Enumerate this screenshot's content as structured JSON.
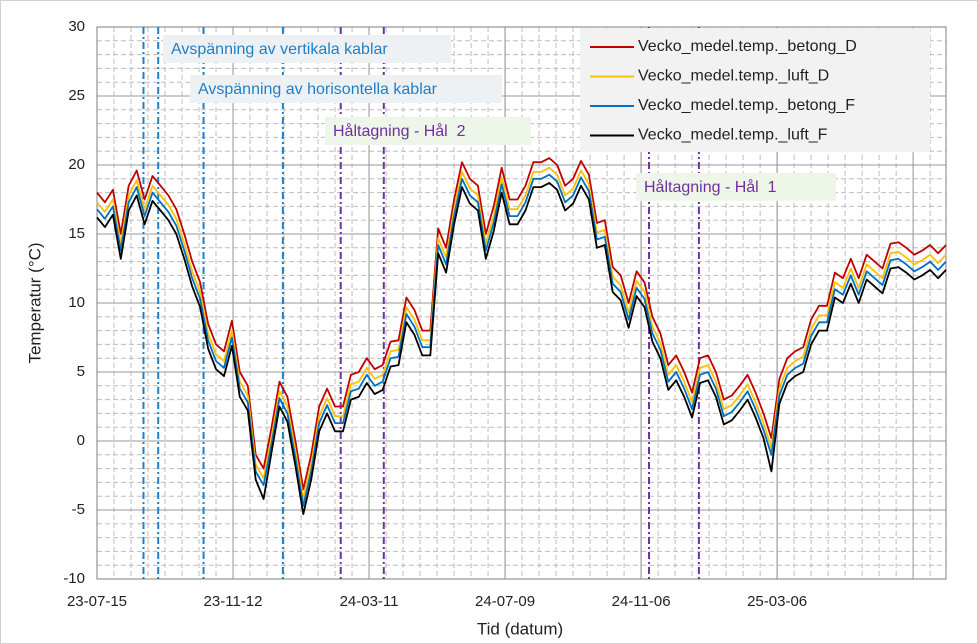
{
  "chart_data": {
    "type": "line",
    "xlabel": "Tid (datum)",
    "ylabel": "Temperatur (°C)",
    "x": [
      "23-07-15",
      "23-07-22",
      "23-07-29",
      "23-08-05",
      "23-08-12",
      "23-08-19",
      "23-08-26",
      "23-09-02",
      "23-09-09",
      "23-09-16",
      "23-09-23",
      "23-09-30",
      "23-10-07",
      "23-10-14",
      "23-10-21",
      "23-10-28",
      "23-11-04",
      "23-11-11",
      "23-11-18",
      "23-11-25",
      "23-12-02",
      "23-12-09",
      "23-12-16",
      "23-12-23",
      "23-12-30",
      "24-01-06",
      "24-01-13",
      "24-01-20",
      "24-01-27",
      "24-02-03",
      "24-02-10",
      "24-02-17",
      "24-02-24",
      "24-03-02",
      "24-03-09",
      "24-03-16",
      "24-03-23",
      "24-03-30",
      "24-04-06",
      "24-04-13",
      "24-04-20",
      "24-04-27",
      "24-05-04",
      "24-05-11",
      "24-05-18",
      "24-05-25",
      "24-06-01",
      "24-06-08",
      "24-06-15",
      "24-06-22",
      "24-06-29",
      "24-07-06",
      "24-07-13",
      "24-07-20",
      "24-07-27",
      "24-08-03",
      "24-08-10",
      "24-08-17",
      "24-08-24",
      "24-08-31",
      "24-09-07",
      "24-09-14",
      "24-09-21",
      "24-09-28",
      "24-10-05",
      "24-10-12",
      "24-10-19",
      "24-10-26",
      "24-11-02",
      "24-11-09",
      "24-11-16",
      "24-11-23",
      "24-11-30",
      "24-12-07",
      "24-12-14",
      "24-12-21",
      "24-12-28",
      "25-01-04",
      "25-01-11",
      "25-01-18",
      "25-01-25",
      "25-02-01",
      "25-02-08",
      "25-02-15",
      "25-02-22",
      "25-03-01",
      "25-03-08",
      "25-03-15",
      "25-03-22",
      "25-03-29",
      "25-04-05",
      "25-04-12",
      "25-04-19",
      "25-04-26",
      "25-05-03",
      "25-05-10",
      "25-05-17",
      "25-05-24",
      "25-05-31",
      "25-06-07",
      "25-06-14",
      "25-06-21",
      "25-06-28",
      "25-07-05",
      "25-07-12",
      "25-07-19",
      "25-07-26",
      "25-08-02"
    ],
    "series": [
      {
        "name": "Vecko_medel.temp._betong_D",
        "color": "#c00000",
        "values": [
          18,
          17.3,
          18.2,
          15,
          18.5,
          19.6,
          17.5,
          19.2,
          18.5,
          17.8,
          16.8,
          15,
          13,
          11.5,
          8.5,
          7,
          6.5,
          8.7,
          5,
          4,
          -1,
          -2,
          1,
          4.3,
          3.2,
          0,
          -3.5,
          -1,
          2.5,
          3.8,
          2.5,
          2.5,
          4.8,
          5,
          6,
          5.2,
          5.5,
          7.2,
          7.3,
          10.4,
          9.5,
          8,
          8,
          15.4,
          14,
          17.5,
          20.2,
          19,
          18.5,
          15,
          17,
          19.8,
          17.5,
          17.5,
          18.5,
          20.2,
          20.2,
          20.5,
          20,
          18.5,
          19,
          20.3,
          19.3,
          15.8,
          16,
          12.6,
          12,
          10,
          12.3,
          11.5,
          9,
          7.8,
          5.5,
          6.2,
          5,
          3.5,
          6,
          6.2,
          5,
          3,
          3.3,
          4,
          4.8,
          3.5,
          2,
          0.2,
          4.5,
          6,
          6.5,
          6.8,
          8.8,
          9.8,
          9.8,
          12.2,
          11.8,
          13.2,
          11.8,
          13.5,
          13,
          12.5,
          14.3,
          14.4,
          14,
          13.5,
          13.8,
          14.2,
          13.6,
          14.2
        ]
      },
      {
        "name": "Vecko_medel.temp._luft_D",
        "color": "#ffc000",
        "values": [
          17.3,
          16.6,
          17.5,
          14.3,
          17.8,
          18.9,
          16.8,
          18.5,
          17.8,
          17.1,
          16.1,
          14.3,
          12.3,
          10.8,
          7.8,
          6.3,
          5.8,
          8,
          4.3,
          3.3,
          -1.7,
          -2.7,
          0.3,
          3.6,
          2.5,
          -0.7,
          -4.2,
          -1.7,
          1.8,
          3.1,
          1.8,
          1.8,
          4.1,
          4.3,
          5.3,
          4.5,
          4.8,
          6.5,
          6.6,
          9.7,
          8.8,
          7.3,
          7.3,
          14.7,
          13.3,
          16.8,
          19.5,
          18.3,
          17.8,
          14.3,
          16.3,
          19.1,
          16.8,
          16.8,
          17.8,
          19.5,
          19.5,
          19.8,
          19.3,
          17.8,
          18.3,
          19.6,
          18.6,
          15.1,
          15.3,
          11.9,
          11.3,
          9.3,
          11.6,
          10.8,
          8.3,
          7.1,
          4.8,
          5.5,
          4.3,
          2.8,
          5.3,
          5.5,
          4.3,
          2.3,
          2.6,
          3.3,
          4.1,
          2.8,
          1.3,
          -0.5,
          3.8,
          5.3,
          5.8,
          6.1,
          8.1,
          9.1,
          9.1,
          11.5,
          11.1,
          12.5,
          11.1,
          12.8,
          12.3,
          11.8,
          13.6,
          13.7,
          13.3,
          12.8,
          13.1,
          13.5,
          12.9,
          13.5
        ]
      },
      {
        "name": "Vecko_medel.temp._betong_F",
        "color": "#0070c0",
        "values": [
          16.8,
          16.1,
          17,
          13.8,
          17.3,
          18.4,
          16.3,
          18,
          17.3,
          16.6,
          15.6,
          13.8,
          11.8,
          10.3,
          7.3,
          5.8,
          5.3,
          7.5,
          3.8,
          2.8,
          -2.2,
          -3.2,
          -0.2,
          3.1,
          2,
          -1.2,
          -4.7,
          -2.2,
          1.3,
          2.6,
          1.3,
          1.3,
          3.6,
          3.8,
          4.8,
          4,
          4.3,
          6,
          6.1,
          9.2,
          8.3,
          6.8,
          6.8,
          14.2,
          12.8,
          16.3,
          19,
          17.8,
          17.3,
          13.8,
          15.8,
          18.6,
          16.3,
          16.3,
          17.3,
          19,
          19,
          19.3,
          18.8,
          17.3,
          17.8,
          19.1,
          18.1,
          14.6,
          14.8,
          11.4,
          10.8,
          8.8,
          11.1,
          10.3,
          7.8,
          6.6,
          4.3,
          5,
          3.8,
          2.3,
          4.8,
          5,
          3.8,
          1.8,
          2.1,
          2.8,
          3.6,
          2.3,
          0.8,
          -1,
          3.3,
          4.8,
          5.3,
          5.6,
          7.6,
          8.6,
          8.6,
          11,
          10.6,
          12,
          10.6,
          12.3,
          11.8,
          11.3,
          13.1,
          13.2,
          12.8,
          12.3,
          12.6,
          13,
          12.4,
          13
        ]
      },
      {
        "name": "Vecko_medel.temp._luft_F",
        "color": "#000000",
        "values": [
          16.2,
          15.5,
          16.4,
          13.2,
          16.7,
          17.8,
          15.7,
          17.4,
          16.7,
          16,
          15,
          13.2,
          11.2,
          9.7,
          6.7,
          5.2,
          4.7,
          6.9,
          3.2,
          2.2,
          -2.8,
          -4.2,
          -0.8,
          2.5,
          1.4,
          -1.8,
          -5.3,
          -2.8,
          0.7,
          2,
          0.7,
          0.7,
          3,
          3.2,
          4.2,
          3.4,
          3.7,
          5.4,
          5.5,
          8.6,
          7.7,
          6.2,
          6.2,
          13.6,
          12.2,
          15.7,
          18.4,
          17.2,
          16.7,
          13.2,
          15.2,
          18,
          15.7,
          15.7,
          16.7,
          18.4,
          18.4,
          18.7,
          18.2,
          16.7,
          17.2,
          18.5,
          17.5,
          14,
          14.2,
          10.8,
          10.2,
          8.2,
          10.5,
          9.7,
          7.2,
          6,
          3.7,
          4.4,
          3.2,
          1.7,
          4.2,
          4.4,
          3.2,
          1.2,
          1.5,
          2.2,
          3,
          1.7,
          0.2,
          -2.2,
          2.7,
          4.2,
          4.7,
          5,
          7,
          8,
          8,
          10.4,
          10,
          11.4,
          10,
          11.7,
          11.2,
          10.7,
          12.5,
          12.6,
          12.2,
          11.7,
          12,
          12.4,
          11.8,
          12.4
        ]
      }
    ],
    "xlim": [
      "23-07-15",
      "25-08-02"
    ],
    "xticks": [
      "23-07-15",
      "23-11-12",
      "24-03-11",
      "24-07-09",
      "24-11-06",
      "25-03-06"
    ],
    "ylim": [
      -10,
      30
    ],
    "yticks": [
      -10,
      -5,
      0,
      5,
      10,
      15,
      20,
      25,
      30
    ],
    "grid": true,
    "legend": "upper right",
    "annotations": [
      {
        "text": "Avspänning av vertikala kablar",
        "color": "#1f7fc8",
        "lines": [
          "23-08-25",
          "23-09-07"
        ]
      },
      {
        "text": "Avspänning av horisontella kablar",
        "color": "#1f7fc8",
        "lines": [
          "23-10-17",
          "23-12-26"
        ]
      },
      {
        "text": "Håltagning - Hål  2",
        "color": "#7030a0",
        "lines": [
          "24-02-15",
          "24-03-24"
        ]
      },
      {
        "text": "Håltagning - Hål  1",
        "color": "#7030a0",
        "lines": [
          "24-11-13",
          "24-12-27"
        ]
      }
    ]
  }
}
